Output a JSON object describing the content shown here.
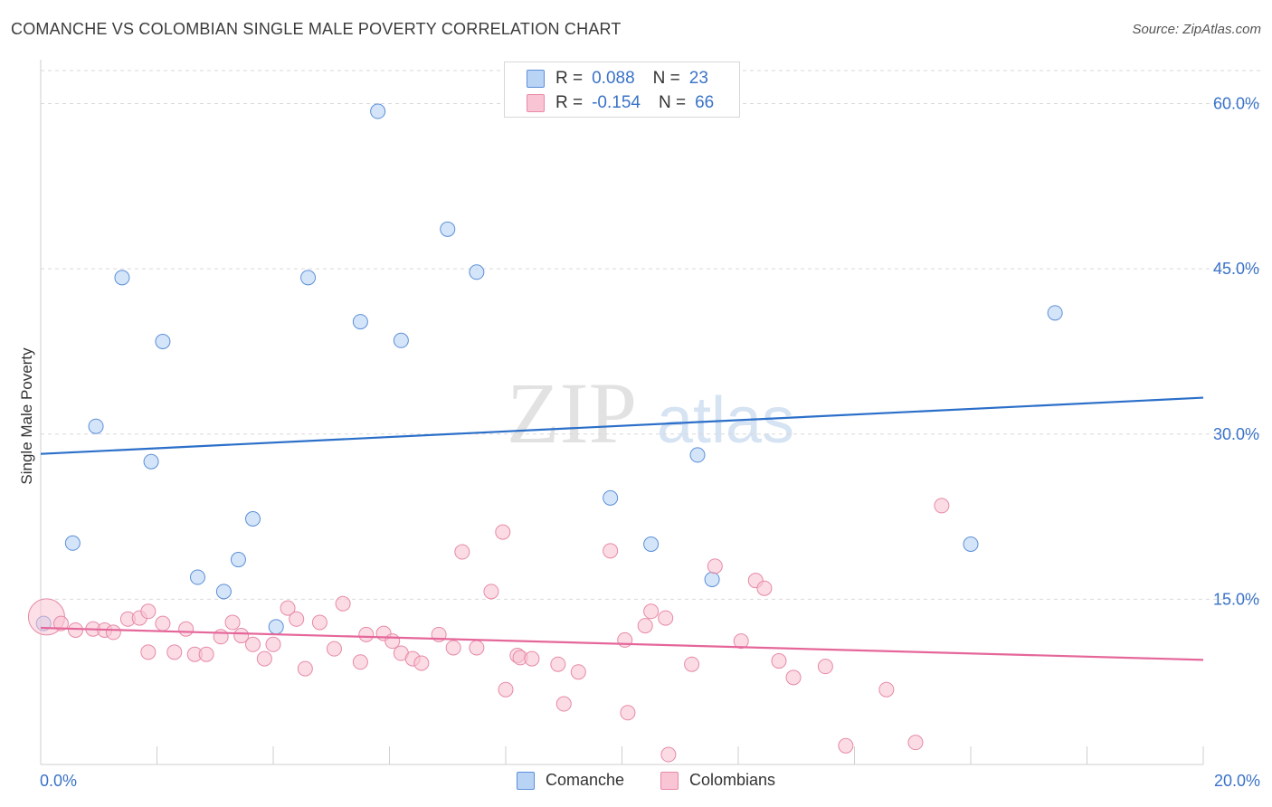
{
  "title": "COMANCHE VS COLOMBIAN SINGLE MALE POVERTY CORRELATION CHART",
  "source": "Source: ZipAtlas.com",
  "watermark": {
    "zip": "ZIP",
    "atlas": "atlas"
  },
  "legend": {
    "rows": [
      {
        "r_label": "R =",
        "r_value": "0.088",
        "n_label": "N =",
        "n_value": "23"
      },
      {
        "r_label": "R =",
        "r_value": "-0.154",
        "n_label": "N =",
        "n_value": "66"
      }
    ]
  },
  "colors": {
    "comanche_fill": "#b9d3f5",
    "comanche_stroke": "#5b8fd8",
    "comanche_line": "#2b6fc9",
    "colombians_fill": "#f9c5d4",
    "colombians_stroke": "#e78aa6",
    "colombians_line": "#e5679a",
    "tick_label": "#3a73c8",
    "grid": "#d9d9d9"
  },
  "chart_data": {
    "type": "scatter",
    "title": "COMANCHE VS COLOMBIAN SINGLE MALE POVERTY CORRELATION CHART",
    "xlabel": "",
    "ylabel": "Single Male Poverty",
    "xlim": [
      0,
      20
    ],
    "ylim": [
      0,
      63
    ],
    "x_tick_labels": [
      "0.0%",
      "20.0%"
    ],
    "y_ticks": [
      15,
      30,
      45,
      60
    ],
    "y_tick_labels": [
      "15.0%",
      "30.0%",
      "45.0%",
      "60.0%"
    ],
    "grid": "horizontal dashed",
    "legend_position": "top-center",
    "series": [
      {
        "name": "Comanche",
        "points": [
          [
            0.05,
            12.8
          ],
          [
            0.55,
            20.1
          ],
          [
            0.95,
            30.7
          ],
          [
            1.4,
            44.2
          ],
          [
            1.9,
            27.5
          ],
          [
            2.1,
            38.4
          ],
          [
            2.7,
            17.0
          ],
          [
            3.15,
            15.7
          ],
          [
            3.4,
            18.6
          ],
          [
            3.65,
            22.3
          ],
          [
            4.05,
            12.5
          ],
          [
            4.6,
            44.2
          ],
          [
            5.5,
            40.2
          ],
          [
            5.8,
            59.3
          ],
          [
            6.2,
            38.5
          ],
          [
            7.0,
            48.6
          ],
          [
            7.5,
            44.7
          ],
          [
            9.8,
            24.2
          ],
          [
            10.5,
            20.0
          ],
          [
            11.3,
            28.1
          ],
          [
            11.55,
            16.8
          ],
          [
            16.0,
            20.0
          ],
          [
            17.45,
            41.0
          ]
        ],
        "trend": {
          "x": [
            0,
            20
          ],
          "y": [
            28.2,
            33.3
          ]
        }
      },
      {
        "name": "Colombians",
        "points": [
          [
            0.1,
            13.4
          ],
          [
            0.35,
            12.8
          ],
          [
            0.6,
            12.2
          ],
          [
            0.9,
            12.3
          ],
          [
            1.1,
            12.2
          ],
          [
            1.25,
            12.0
          ],
          [
            1.5,
            13.2
          ],
          [
            1.7,
            13.3
          ],
          [
            1.85,
            13.9
          ],
          [
            1.85,
            10.2
          ],
          [
            2.1,
            12.8
          ],
          [
            2.3,
            10.2
          ],
          [
            2.5,
            12.3
          ],
          [
            2.65,
            10.0
          ],
          [
            2.85,
            10.0
          ],
          [
            3.1,
            11.6
          ],
          [
            3.3,
            12.9
          ],
          [
            3.45,
            11.7
          ],
          [
            3.65,
            10.9
          ],
          [
            3.85,
            9.6
          ],
          [
            4.0,
            10.9
          ],
          [
            4.25,
            14.2
          ],
          [
            4.4,
            13.2
          ],
          [
            4.55,
            8.7
          ],
          [
            4.8,
            12.9
          ],
          [
            5.05,
            10.5
          ],
          [
            5.2,
            14.6
          ],
          [
            5.5,
            9.3
          ],
          [
            5.6,
            11.8
          ],
          [
            5.9,
            11.9
          ],
          [
            6.05,
            11.2
          ],
          [
            6.2,
            10.1
          ],
          [
            6.4,
            9.6
          ],
          [
            6.55,
            9.2
          ],
          [
            6.85,
            11.8
          ],
          [
            7.1,
            10.6
          ],
          [
            7.25,
            19.3
          ],
          [
            7.5,
            10.6
          ],
          [
            7.75,
            15.7
          ],
          [
            7.95,
            21.1
          ],
          [
            8.0,
            6.8
          ],
          [
            8.2,
            9.9
          ],
          [
            8.25,
            9.7
          ],
          [
            8.45,
            9.6
          ],
          [
            8.9,
            9.1
          ],
          [
            9.0,
            5.5
          ],
          [
            9.25,
            8.4
          ],
          [
            9.8,
            19.4
          ],
          [
            10.05,
            11.3
          ],
          [
            10.1,
            4.7
          ],
          [
            10.4,
            12.6
          ],
          [
            10.5,
            13.9
          ],
          [
            10.75,
            13.3
          ],
          [
            10.8,
            0.9
          ],
          [
            11.2,
            9.1
          ],
          [
            11.6,
            18.0
          ],
          [
            12.05,
            11.2
          ],
          [
            12.3,
            16.7
          ],
          [
            12.45,
            16.0
          ],
          [
            12.7,
            9.4
          ],
          [
            12.95,
            7.9
          ],
          [
            13.5,
            8.9
          ],
          [
            13.85,
            1.7
          ],
          [
            14.55,
            6.8
          ],
          [
            15.05,
            2.0
          ],
          [
            15.5,
            23.5
          ]
        ],
        "trend": {
          "x": [
            0,
            20
          ],
          "y": [
            12.4,
            9.5
          ]
        }
      }
    ]
  },
  "bottom_legend": {
    "items": [
      "Comanche",
      "Colombians"
    ]
  }
}
